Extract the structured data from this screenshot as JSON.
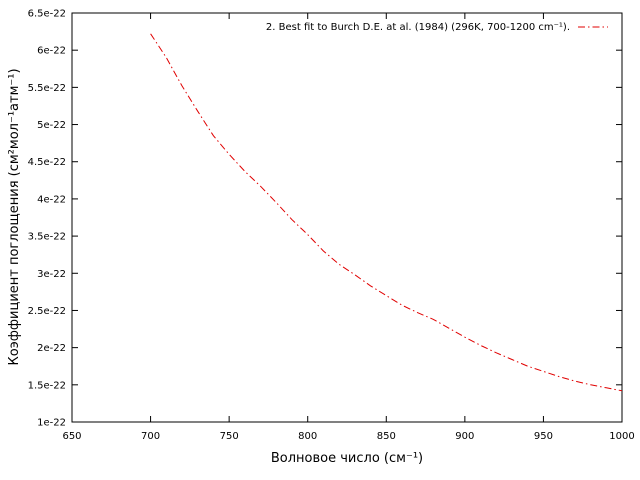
{
  "chart_data": {
    "type": "line",
    "title": "",
    "xlabel": "Волновое число (см⁻¹)",
    "ylabel": "Коэффициент поглощения (см²мол⁻¹атм⁻¹)",
    "xlim": [
      650,
      1000
    ],
    "ylim": [
      1e-22,
      6.5e-22
    ],
    "x_ticks": [
      650,
      700,
      750,
      800,
      850,
      900,
      950,
      1000
    ],
    "x_tick_labels": [
      "650",
      "700",
      "750",
      "800",
      "850",
      "900",
      "950",
      "1000"
    ],
    "y_ticks": [
      1e-22,
      1.5e-22,
      2e-22,
      2.5e-22,
      3e-22,
      3.5e-22,
      4e-22,
      4.5e-22,
      5e-22,
      5.5e-22,
      6e-22,
      6.5e-22
    ],
    "y_tick_labels": [
      "1e-22",
      "1.5e-22",
      "2e-22",
      "2.5e-22",
      "3e-22",
      "3.5e-22",
      "4e-22",
      "4.5e-22",
      "5e-22",
      "5.5e-22",
      "6e-22",
      "6.5e-22"
    ],
    "grid": false,
    "legend_position": "top-right",
    "series": [
      {
        "name": "2. Best fit to Burch D.E. at al. (1984) (296K, 700-1200 cm⁻¹).",
        "color": "#e00000",
        "line_style": "dash-dot",
        "x": [
          700,
          710,
          720,
          730,
          740,
          750,
          760,
          770,
          780,
          790,
          800,
          810,
          820,
          830,
          840,
          850,
          860,
          870,
          880,
          890,
          900,
          910,
          920,
          930,
          940,
          950,
          960,
          970,
          980,
          990,
          1000
        ],
        "y": [
          6.22e-22,
          5.9e-22,
          5.52e-22,
          5.18e-22,
          4.85e-22,
          4.6e-22,
          4.37e-22,
          4.17e-22,
          3.95e-22,
          3.72e-22,
          3.52e-22,
          3.3e-22,
          3.12e-22,
          2.98e-22,
          2.83e-22,
          2.7e-22,
          2.57e-22,
          2.47e-22,
          2.38e-22,
          2.26e-22,
          2.14e-22,
          2.03e-22,
          1.93e-22,
          1.84e-22,
          1.75e-22,
          1.68e-22,
          1.61e-22,
          1.55e-22,
          1.5e-22,
          1.46e-22,
          1.42e-22
        ]
      }
    ]
  }
}
